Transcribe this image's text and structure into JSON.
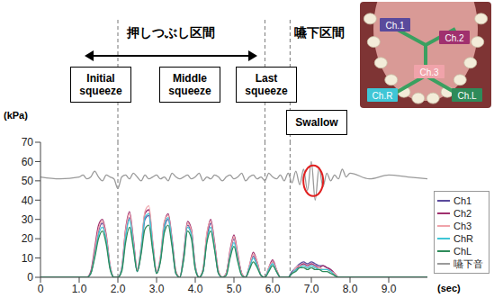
{
  "chart_data": {
    "type": "line",
    "x_label": "(sec)",
    "y_label": "(kPa)",
    "x": [
      0,
      0.5,
      1,
      1.1,
      1.2,
      1.3,
      1.4,
      1.5,
      1.6,
      1.7,
      1.8,
      1.9,
      2,
      2.1,
      2.2,
      2.3,
      2.4,
      2.5,
      2.6,
      2.7,
      2.8,
      2.9,
      3,
      3.1,
      3.2,
      3.3,
      3.4,
      3.5,
      3.6,
      3.7,
      3.8,
      3.9,
      4,
      4.1,
      4.2,
      4.3,
      4.4,
      4.5,
      4.6,
      4.7,
      4.8,
      4.9,
      5,
      5.1,
      5.2,
      5.3,
      5.4,
      5.5,
      5.6,
      5.7,
      5.8,
      5.9,
      6,
      6.1,
      6.2,
      6.3,
      6.4,
      6.5,
      6.6,
      6.7,
      6.8,
      6.9,
      7,
      7.1,
      7.2,
      7.3,
      7.4,
      7.5,
      7.6,
      7.7,
      7.8,
      7.9,
      8,
      8.5,
      9,
      9.5,
      10
    ],
    "series": [
      {
        "name": "Ch1",
        "color": "#5a4a9c",
        "values": [
          0,
          0,
          0,
          0,
          0,
          2,
          12,
          24,
          28,
          20,
          5,
          0,
          0,
          4,
          22,
          31,
          18,
          3,
          13,
          30,
          32,
          16,
          2,
          9,
          25,
          30,
          18,
          2,
          0,
          10,
          27,
          23,
          5,
          0,
          3,
          20,
          28,
          16,
          2,
          0,
          2,
          12,
          20,
          10,
          2,
          0,
          5,
          11,
          7,
          1,
          0,
          4,
          8,
          3,
          0,
          0,
          0,
          3,
          5,
          7,
          8,
          7,
          8,
          7,
          6,
          6,
          5,
          4,
          2,
          0,
          0,
          0,
          0,
          0,
          0,
          0,
          0
        ]
      },
      {
        "name": "Ch2",
        "color": "#a0306e",
        "values": [
          0,
          0,
          0,
          0,
          0,
          3,
          15,
          27,
          30,
          22,
          6,
          0,
          0,
          5,
          25,
          34,
          20,
          4,
          15,
          33,
          35,
          18,
          3,
          10,
          28,
          33,
          20,
          3,
          0,
          12,
          29,
          25,
          6,
          0,
          4,
          22,
          30,
          18,
          3,
          0,
          2,
          14,
          22,
          12,
          2,
          0,
          6,
          13,
          8,
          1,
          0,
          5,
          9,
          4,
          0,
          0,
          0,
          2,
          4,
          6,
          7,
          6,
          7,
          6,
          5,
          6,
          5,
          4,
          2,
          0,
          0,
          0,
          0,
          0,
          0,
          0,
          0
        ]
      },
      {
        "name": "Ch3",
        "color": "#f0a3aa",
        "values": [
          0,
          0,
          0,
          0,
          0,
          2,
          13,
          25,
          29,
          21,
          6,
          0,
          0,
          5,
          24,
          33,
          19,
          4,
          16,
          34,
          37,
          19,
          3,
          11,
          29,
          32,
          19,
          3,
          0,
          11,
          28,
          24,
          6,
          0,
          4,
          23,
          29,
          17,
          3,
          0,
          2,
          13,
          21,
          11,
          2,
          0,
          6,
          12,
          8,
          1,
          0,
          5,
          8,
          4,
          0,
          0,
          0,
          2,
          5,
          6,
          6,
          5,
          6,
          5,
          5,
          4,
          4,
          3,
          2,
          0,
          0,
          0,
          0,
          0,
          0,
          0,
          0
        ]
      },
      {
        "name": "ChR",
        "color": "#3fc6d6",
        "values": [
          0,
          0,
          0,
          0,
          0,
          2,
          11,
          22,
          26,
          19,
          5,
          0,
          0,
          4,
          21,
          30,
          17,
          3,
          14,
          31,
          33,
          16,
          2,
          9,
          26,
          31,
          18,
          2,
          0,
          10,
          26,
          22,
          5,
          0,
          3,
          19,
          26,
          15,
          2,
          0,
          1,
          11,
          18,
          9,
          1,
          0,
          5,
          10,
          6,
          1,
          0,
          4,
          7,
          3,
          0,
          0,
          0,
          2,
          4,
          5,
          6,
          5,
          6,
          5,
          4,
          4,
          4,
          3,
          1,
          0,
          0,
          0,
          0,
          0,
          0,
          0,
          0
        ]
      },
      {
        "name": "ChL",
        "color": "#2e8b5a",
        "values": [
          0,
          0,
          0,
          0,
          0,
          2,
          10,
          20,
          24,
          17,
          4,
          0,
          0,
          3,
          18,
          26,
          15,
          3,
          12,
          25,
          27,
          14,
          2,
          8,
          23,
          27,
          16,
          2,
          0,
          9,
          24,
          20,
          4,
          0,
          3,
          18,
          24,
          14,
          2,
          0,
          1,
          10,
          16,
          8,
          1,
          0,
          4,
          8,
          5,
          1,
          0,
          3,
          6,
          3,
          0,
          0,
          0,
          2,
          3,
          5,
          5,
          4,
          5,
          4,
          4,
          3,
          3,
          2,
          1,
          0,
          0,
          0,
          0,
          0,
          0,
          0,
          0
        ]
      },
      {
        "name": "嚥下音",
        "color": "#9a9a9a",
        "values": [
          52,
          51,
          52,
          53,
          51,
          52,
          55,
          52,
          50,
          53,
          52,
          51,
          46,
          52,
          53,
          51,
          54,
          52,
          50,
          53,
          51,
          52,
          53,
          51,
          52,
          50,
          54,
          52,
          51,
          52,
          53,
          51,
          52,
          54,
          50,
          52,
          51,
          53,
          52,
          50,
          52,
          53,
          51,
          52,
          54,
          50,
          52,
          53,
          51,
          52,
          50,
          54,
          52,
          51,
          53,
          50,
          54,
          49,
          55,
          48,
          56,
          45,
          60,
          40,
          57,
          47,
          54,
          50,
          53,
          51,
          56,
          52,
          54,
          51,
          53,
          52,
          51
        ]
      }
    ],
    "xlim": [
      0,
      10
    ],
    "xticks": [
      0,
      {
        "value": 1,
        "label": "1.0"
      },
      {
        "value": 2,
        "label": "2.0"
      },
      {
        "value": 3,
        "label": "3.0"
      },
      {
        "value": 4,
        "label": "4.0"
      },
      {
        "value": 5,
        "label": "5.0"
      },
      {
        "value": 6,
        "label": "6.0"
      },
      {
        "value": 7,
        "label": "7.0"
      },
      {
        "value": 8,
        "label": "8.0"
      },
      {
        "value": 9,
        "label": "9.0"
      }
    ],
    "ylim": [
      0,
      70
    ],
    "yticks": [
      0,
      10,
      20,
      30,
      40,
      50,
      60,
      70
    ],
    "grid": false,
    "legend": "right",
    "reference_lines": [
      2.0,
      5.8,
      6.45
    ],
    "highlight": {
      "x": 7.05,
      "y": 50
    },
    "annotations": {
      "squeeze_section": "押しつぶし区間",
      "swallow_section": "嚥下区間",
      "phases": [
        "Initial squeeze",
        "Middle squeeze",
        "Last squeeze",
        "Swallow"
      ],
      "inset_labels": [
        "Ch.1",
        "Ch.2",
        "Ch.3",
        "Ch.R",
        "Ch.L"
      ]
    }
  }
}
